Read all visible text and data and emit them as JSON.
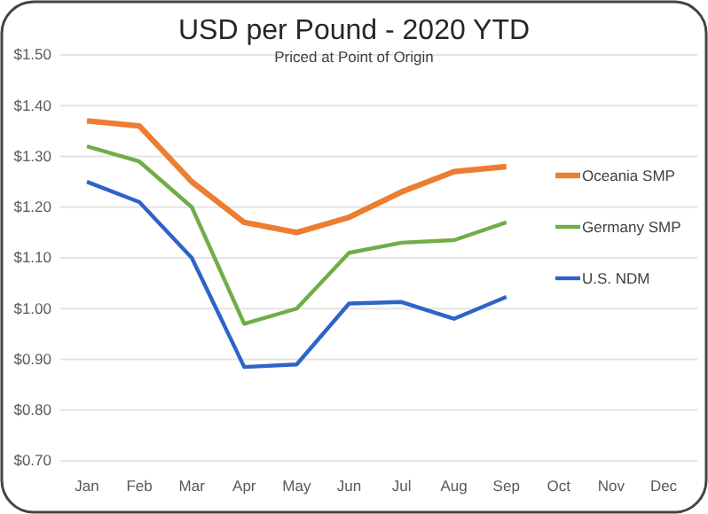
{
  "chart_data": {
    "type": "line",
    "title": "USD per Pound - 2020 YTD",
    "subtitle": "Priced at Point of Origin",
    "categories": [
      "Jan",
      "Feb",
      "Mar",
      "Apr",
      "May",
      "Jun",
      "Jul",
      "Aug",
      "Sep",
      "Oct",
      "Nov",
      "Dec"
    ],
    "series": [
      {
        "name": "Oceania SMP",
        "color": "#ed7d31",
        "values": [
          1.37,
          1.36,
          1.25,
          1.17,
          1.15,
          1.18,
          1.23,
          1.27,
          1.28,
          null,
          null,
          null
        ]
      },
      {
        "name": "Germany SMP",
        "color": "#70ad47",
        "values": [
          1.32,
          1.29,
          1.2,
          0.97,
          1.0,
          1.11,
          1.13,
          1.135,
          1.17,
          null,
          null,
          null
        ]
      },
      {
        "name": "U.S. NDM",
        "color": "#2e64c8",
        "values": [
          1.25,
          1.21,
          1.1,
          0.885,
          0.89,
          1.01,
          1.013,
          0.98,
          1.023,
          null,
          null,
          null
        ]
      }
    ],
    "ylim": [
      0.7,
      1.5
    ],
    "yticks": [
      {
        "value": 0.7,
        "label": "$0.70"
      },
      {
        "value": 0.8,
        "label": "$0.80"
      },
      {
        "value": 0.9,
        "label": "$0.90"
      },
      {
        "value": 1.0,
        "label": "$1.00"
      },
      {
        "value": 1.1,
        "label": "$1.10"
      },
      {
        "value": 1.2,
        "label": "$1.20"
      },
      {
        "value": 1.3,
        "label": "$1.30"
      },
      {
        "value": 1.4,
        "label": "$1.40"
      },
      {
        "value": 1.5,
        "label": "$1.50"
      }
    ],
    "grid": "y",
    "legend": "right",
    "marker": "none",
    "line_style": "solid"
  }
}
